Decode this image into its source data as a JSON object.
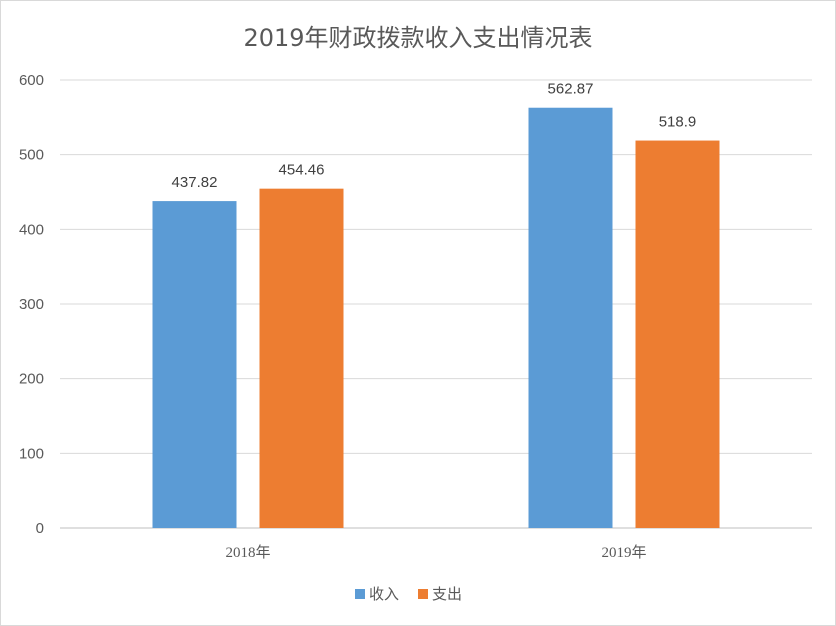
{
  "chart_data": {
    "type": "bar",
    "title": "2019年财政拨款收入支出情况表",
    "categories": [
      "2018年",
      "2019年"
    ],
    "series": [
      {
        "name": "收入",
        "values": [
          437.82,
          562.87
        ],
        "labels": [
          "437.82",
          "562.87"
        ],
        "color": "#5b9bd5"
      },
      {
        "name": "支出",
        "values": [
          454.46,
          518.9
        ],
        "labels": [
          "454.46",
          "518.9"
        ],
        "color": "#ed7d31"
      }
    ],
    "ylim": [
      0,
      600
    ],
    "yticks": [
      0,
      100,
      200,
      300,
      400,
      500,
      600
    ],
    "xlabel": "",
    "ylabel": "",
    "grid": true,
    "legend": "bottom"
  }
}
